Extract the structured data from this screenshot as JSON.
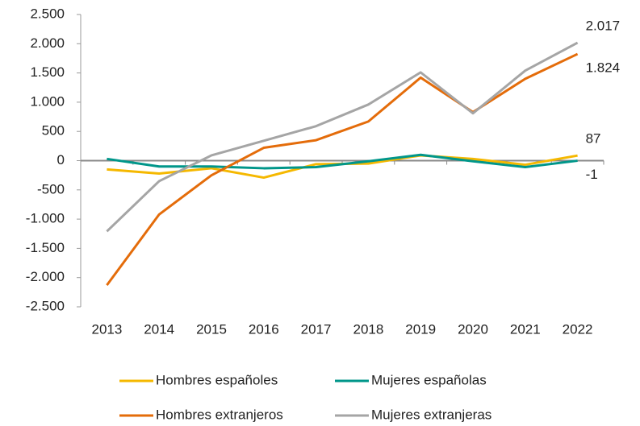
{
  "chart_data": {
    "type": "line",
    "x": [
      "2013",
      "2014",
      "2015",
      "2016",
      "2017",
      "2018",
      "2019",
      "2020",
      "2021",
      "2022"
    ],
    "series": [
      {
        "name": "Hombres españoles",
        "color": "#f5b800",
        "values": [
          -150,
          -220,
          -130,
          -290,
          -60,
          -50,
          90,
          30,
          -70,
          87
        ],
        "value_labels": [
          null,
          null,
          null,
          null,
          null,
          null,
          null,
          null,
          null,
          "87"
        ]
      },
      {
        "name": "Mujeres españolas",
        "color": "#00968a",
        "values": [
          30,
          -100,
          -100,
          -130,
          -110,
          -10,
          100,
          -10,
          -110,
          -1
        ],
        "value_labels": [
          null,
          null,
          null,
          null,
          null,
          null,
          null,
          null,
          null,
          "-1"
        ]
      },
      {
        "name": "Hombres extranjeros",
        "color": "#e46c0a",
        "values": [
          -2130,
          -920,
          -250,
          220,
          350,
          670,
          1420,
          830,
          1400,
          1824
        ],
        "value_labels": [
          null,
          null,
          null,
          null,
          null,
          null,
          null,
          null,
          null,
          "1.824"
        ]
      },
      {
        "name": "Mujeres extranjeras",
        "color": "#a5a5a5",
        "values": [
          -1210,
          -350,
          90,
          340,
          590,
          960,
          1510,
          810,
          1540,
          2017
        ],
        "value_labels": [
          null,
          null,
          null,
          null,
          null,
          null,
          null,
          null,
          null,
          "2.017"
        ]
      }
    ],
    "ylim": [
      -2500,
      2500
    ],
    "yticks": [
      {
        "value": -2500,
        "label": "-2.500"
      },
      {
        "value": -2000,
        "label": "-2.000"
      },
      {
        "value": -1500,
        "label": "-1.500"
      },
      {
        "value": -1000,
        "label": "-1.000"
      },
      -500,
      0,
      500,
      {
        "value": 1000,
        "label": "1.000"
      },
      {
        "value": 1500,
        "label": "1.500"
      },
      {
        "value": 2000,
        "label": "2.000"
      },
      {
        "value": 2500,
        "label": "2.500"
      }
    ],
    "legend": "bottom"
  }
}
